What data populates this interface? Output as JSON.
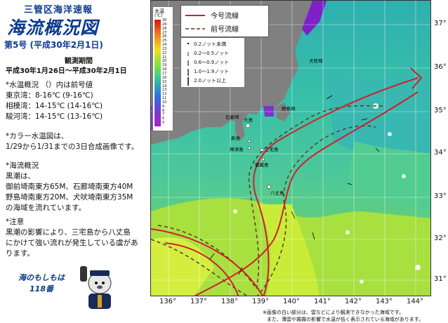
{
  "header": {
    "org_title": "三管区海洋速報",
    "main_title": "海流概況図",
    "issue": "第5号 (平成30年2月1日)",
    "period_label": "観測期間",
    "period": "平成30年1月26日～平成30年2月1日"
  },
  "water_temp": {
    "heading": "*水温概況 （）内は前号値",
    "rows": [
      "東京湾：8-16℃ (9-16℃)",
      "相模湾：14-15℃ (14-16℃)",
      "駿河湾：14-15℃ (13-16℃)"
    ]
  },
  "color_map": {
    "heading": "*カラー水温図は、",
    "text": "1/29から1/31までの3日合成画像です。"
  },
  "current": {
    "heading": "*海流概況",
    "lines": [
      "黒潮は、",
      "御前埼南東方65M、石廊埼南東方40M",
      "野島埼南東方20M、犬吠埼南東方35M",
      "の海域を流れています。"
    ]
  },
  "caution": {
    "heading": "*注意",
    "lines": [
      "黒潮の影響により、三宅島から八丈島",
      "にかけて強い流れが発生している虞があ",
      "ります。"
    ]
  },
  "mascot_label": [
    "海のもしもは",
    "118番"
  ],
  "map": {
    "legend": {
      "current_line": "今号流線",
      "previous_line": "前号流線"
    },
    "arrow_legend": [
      "0.2ノット未満",
      "0.2～0.5ノット",
      "0.6～0.9ノット",
      "1.0～1.9ノット",
      "2.0ノット以上"
    ],
    "scale_title": "水温",
    "scale_unit": "(℃)",
    "scale_labels": [
      "30",
      "29",
      "28",
      "27",
      "26",
      "25",
      "24",
      "23",
      "22",
      "21",
      "20",
      "19",
      "18",
      "17",
      "16",
      "15",
      "14",
      "13",
      "12",
      "11",
      "10",
      "9",
      "8",
      "7",
      "6",
      "5"
    ],
    "lat_labels": [
      "37°",
      "36°",
      "35°",
      "34°",
      "33°",
      "32°",
      "31°"
    ],
    "lon_labels": [
      "136°",
      "137°",
      "138°",
      "139°",
      "140°",
      "141°",
      "142°",
      "143°",
      "144°"
    ],
    "places": [
      "大島",
      "新島",
      "神津島",
      "三宅島",
      "御蔵島",
      "八丈島",
      "石廊埼",
      "野島埼",
      "犬吠埼"
    ],
    "notes": [
      "※画像の白い部分は、雲などにより観測できなかった海域です。",
      "また、薄雲や霧霧の影響で水温が低く表示されている海域があります。"
    ],
    "colors": {
      "current": "#d0202a",
      "previous": "#5a3a2a",
      "land": "#808080"
    }
  }
}
